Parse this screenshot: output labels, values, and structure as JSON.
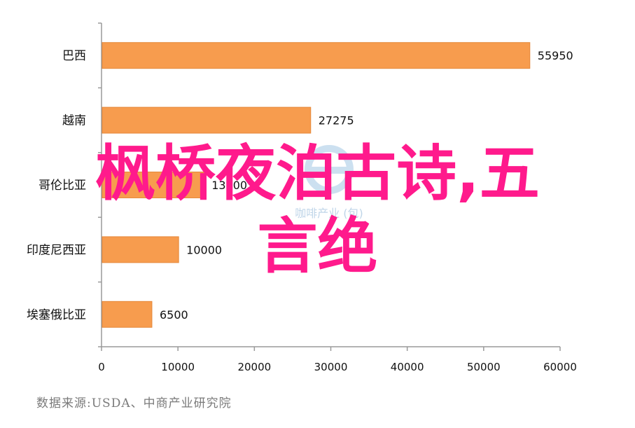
{
  "chart_data": {
    "type": "bar",
    "orientation": "horizontal",
    "categories": [
      "巴西",
      "越南",
      "哥伦比亚",
      "印度尼西亚",
      "埃塞俄比亚"
    ],
    "values": [
      55950,
      27275,
      13300,
      10000,
      6500
    ],
    "value_labels": [
      "55950",
      "27275",
      "13300",
      "10000",
      "6500"
    ],
    "xlim": [
      0,
      60000
    ],
    "xticks": [
      0,
      10000,
      20000,
      30000,
      40000,
      50000,
      60000
    ],
    "xtick_labels": [
      "0",
      "10000",
      "20000",
      "30000",
      "40000",
      "50000",
      "60000"
    ],
    "grid": false,
    "bar_color": "#f79c4e",
    "bar_edge_color": "#e5883a"
  },
  "source_note": "数据来源:USDA、中商产业研究院",
  "overlay_text": {
    "line1": "枫桥夜泊古诗,五",
    "line2": "言绝",
    "color": "#ff1a8c"
  },
  "watermark_text": "咖啡产业 (包)"
}
